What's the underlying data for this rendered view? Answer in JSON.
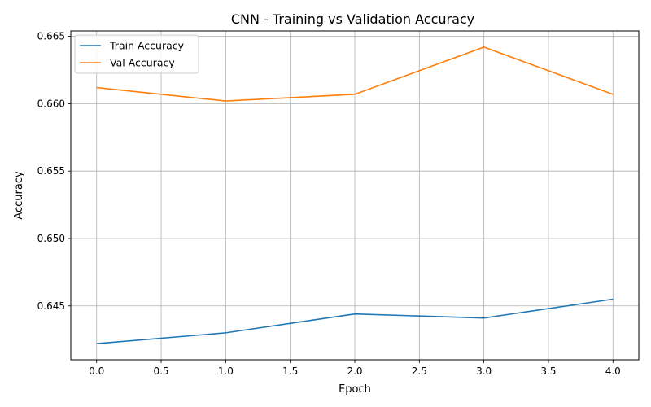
{
  "chart_data": {
    "type": "line",
    "title": "CNN - Training vs Validation Accuracy",
    "xlabel": "Epoch",
    "ylabel": "Accuracy",
    "xlim": [
      -0.2,
      4.2
    ],
    "ylim": [
      0.641,
      0.6654
    ],
    "xticks": [
      0.0,
      0.5,
      1.0,
      1.5,
      2.0,
      2.5,
      3.0,
      3.5,
      4.0
    ],
    "xtick_labels": [
      "0.0",
      "0.5",
      "1.0",
      "1.5",
      "2.0",
      "2.5",
      "3.0",
      "3.5",
      "4.0"
    ],
    "yticks": [
      0.645,
      0.65,
      0.655,
      0.66,
      0.665
    ],
    "ytick_labels": [
      "0.645",
      "0.650",
      "0.655",
      "0.660",
      "0.665"
    ],
    "grid": true,
    "legend_position": "top-left",
    "x": [
      0,
      1,
      2,
      3,
      4
    ],
    "series": [
      {
        "name": "Train Accuracy",
        "color": "#1f77b4",
        "values": [
          0.6422,
          0.643,
          0.6444,
          0.6441,
          0.6455
        ]
      },
      {
        "name": "Val Accuracy",
        "color": "#ff7f0e",
        "values": [
          0.6612,
          0.6602,
          0.6607,
          0.6642,
          0.6607
        ]
      }
    ]
  }
}
